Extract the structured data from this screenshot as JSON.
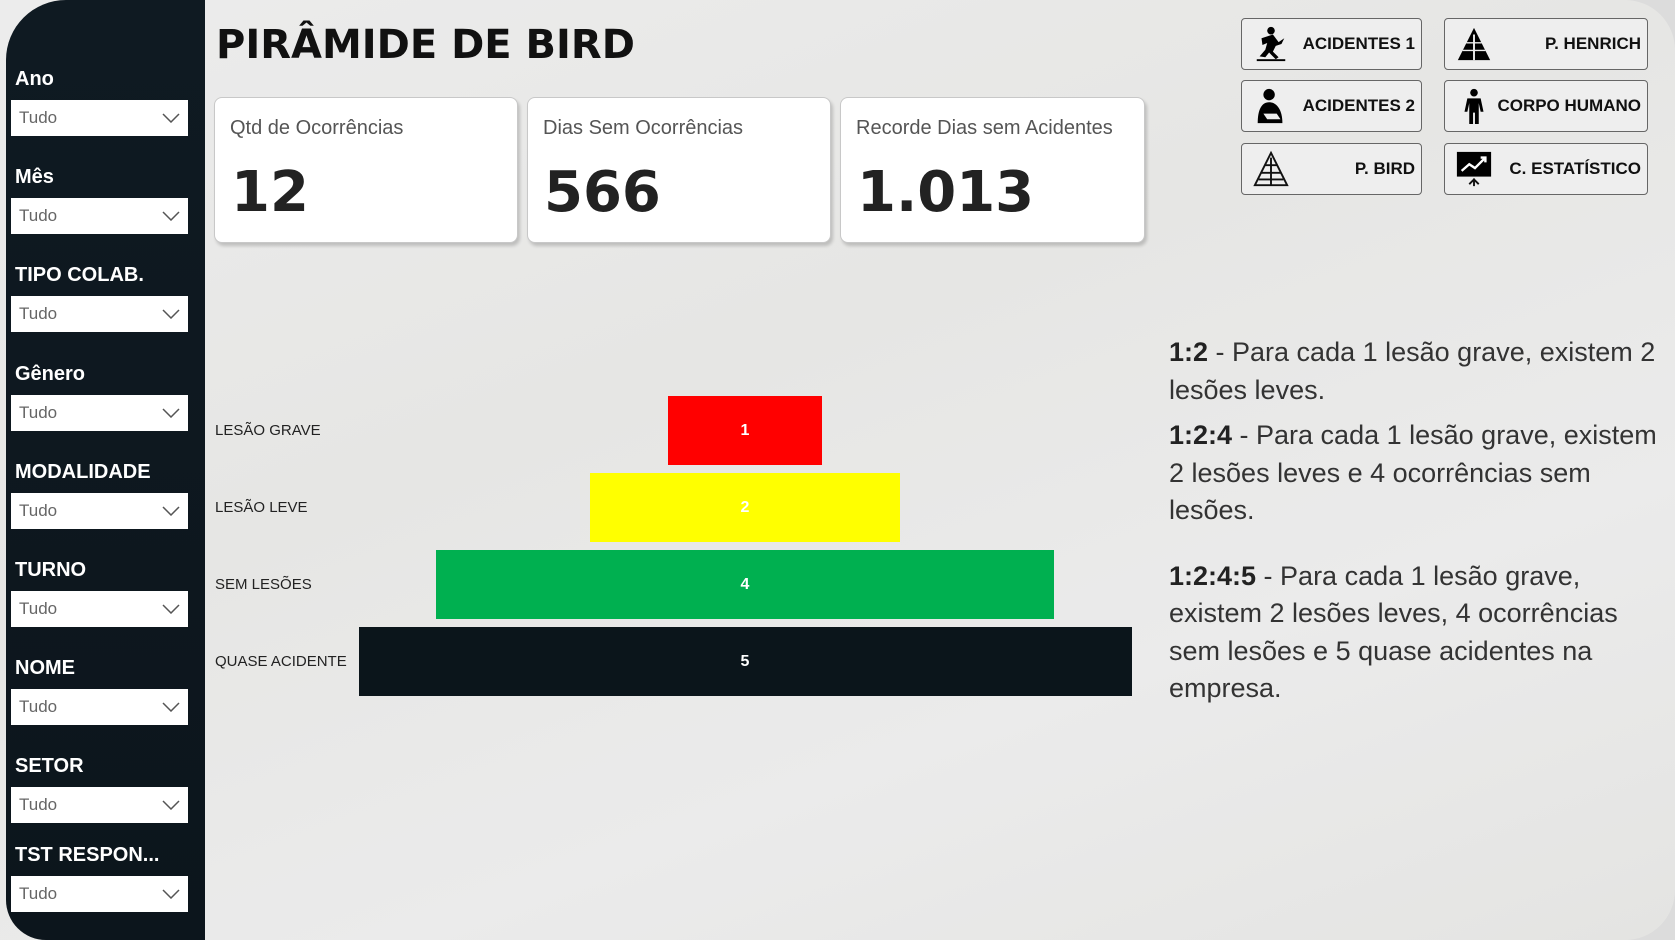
{
  "title": "PIRÂMIDE DE BIRD",
  "filters": [
    {
      "label": "Ano",
      "value": "Tudo"
    },
    {
      "label": "Mês",
      "value": "Tudo"
    },
    {
      "label": "TIPO COLAB.",
      "value": "Tudo"
    },
    {
      "label": "Gênero",
      "value": "Tudo"
    },
    {
      "label": "MODALIDADE",
      "value": "Tudo"
    },
    {
      "label": "TURNO",
      "value": "Tudo"
    },
    {
      "label": "NOME",
      "value": "Tudo"
    },
    {
      "label": "SETOR",
      "value": "Tudo"
    },
    {
      "label": "TST RESPON...",
      "value": "Tudo"
    }
  ],
  "cards": [
    {
      "title": "Qtd de Ocorrências",
      "value": "12"
    },
    {
      "title": "Dias Sem Ocorrências",
      "value": "566"
    },
    {
      "title": "Recorde Dias sem Acidentes",
      "value": "1.013"
    }
  ],
  "nav": [
    {
      "label": "ACIDENTES 1",
      "icon": "falling-person-icon"
    },
    {
      "label": "P. HENRICH",
      "icon": "pyramid-filled-icon"
    },
    {
      "label": "ACIDENTES 2",
      "icon": "injured-arm-icon"
    },
    {
      "label": "CORPO HUMANO",
      "icon": "human-body-icon"
    },
    {
      "label": "P. BIRD",
      "icon": "pyramid-outline-icon"
    },
    {
      "label": "C. ESTATÍSTICO",
      "icon": "chart-board-icon"
    }
  ],
  "chart_data": {
    "type": "bar",
    "categories": [
      "LESÃO GRAVE",
      "LESÃO LEVE",
      "SEM LESÕES",
      "QUASE ACIDENTE"
    ],
    "values": [
      1,
      2,
      4,
      5
    ],
    "colors": [
      "#ff0000",
      "#ffff00",
      "#00b050",
      "#0b151b"
    ]
  },
  "notes": [
    {
      "ratio": "1:2",
      "text": " - Para cada 1 lesão grave, existem 2 lesões leves."
    },
    {
      "ratio": "1:2:4",
      "text": " - Para cada 1 lesão grave, existem 2 lesões leves e 4 ocorrências sem lesões."
    },
    {
      "ratio": "1:2:4:5",
      "text": " - Para cada 1 lesão grave, existem 2 lesões leves,  4 ocorrências sem lesões e 5 quase acidentes na empresa."
    }
  ]
}
